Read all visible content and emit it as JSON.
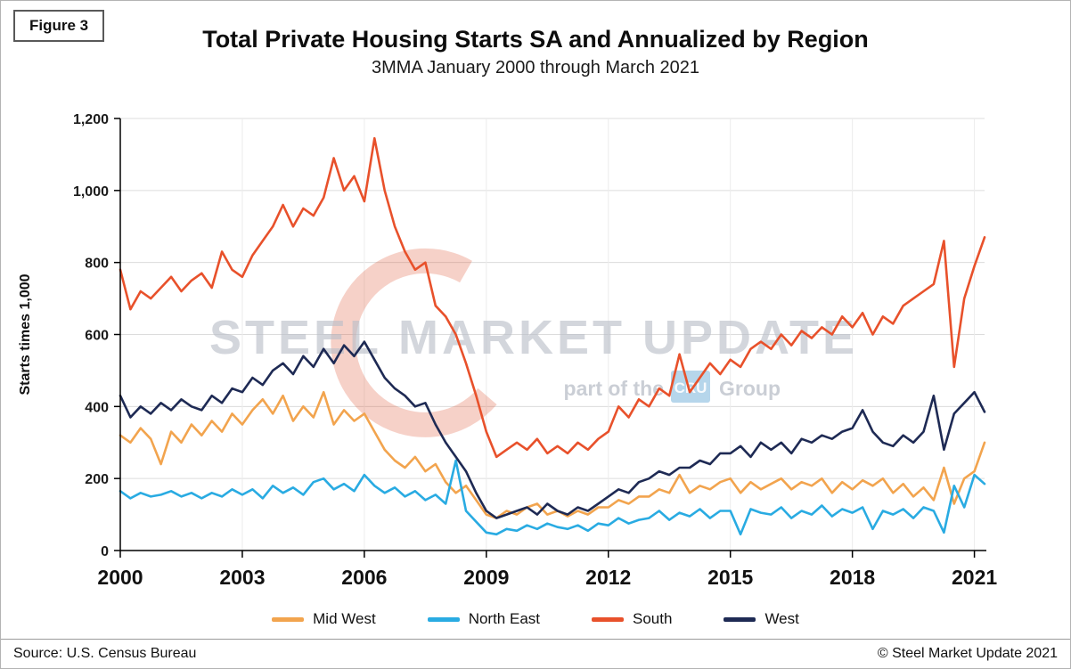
{
  "figure_label": "Figure 3",
  "title": "Total Private Housing Starts SA and Annualized by Region",
  "subtitle": "3MMA January 2000 through March 2021",
  "watermark": {
    "text": "STEEL MARKET UPDATE",
    "tagline_prefix": "part of the",
    "tagline_box": "CRU",
    "tagline_suffix": "Group",
    "text_color": "#b9bec8",
    "swoosh_color": "#dd4f2a",
    "box_color": "#8fc0e0"
  },
  "footer": {
    "source": "Source: U.S. Census Bureau",
    "copyright": "© Steel Market Update 2021"
  },
  "chart_data": {
    "type": "line",
    "title": "Total Private Housing Starts SA and Annualized by Region",
    "subtitle": "3MMA January 2000 through March 2021",
    "ylabel": "Starts times 1,000",
    "ylim": [
      0,
      1200
    ],
    "yticks": [
      0,
      200,
      400,
      600,
      800,
      1000,
      1200
    ],
    "ytick_labels": [
      "0",
      "200",
      "400",
      "600",
      "800",
      "1,000",
      "1,200"
    ],
    "xticks": [
      2000,
      2003,
      2006,
      2009,
      2012,
      2015,
      2018,
      2021
    ],
    "xlim": [
      2000,
      2021.25
    ],
    "x_start": 2000.0,
    "x_step": 0.25,
    "grid": true,
    "legend_position": "bottom",
    "series": [
      {
        "name": "Mid West",
        "color": "#F2A44E",
        "values": [
          320,
          300,
          340,
          310,
          240,
          330,
          300,
          350,
          320,
          360,
          330,
          380,
          350,
          390,
          420,
          380,
          430,
          360,
          400,
          370,
          440,
          350,
          390,
          360,
          380,
          330,
          280,
          250,
          230,
          260,
          220,
          240,
          190,
          160,
          180,
          140,
          100,
          90,
          110,
          100,
          120,
          130,
          100,
          110,
          95,
          110,
          100,
          120,
          120,
          140,
          130,
          150,
          150,
          170,
          160,
          210,
          160,
          180,
          170,
          190,
          200,
          160,
          190,
          170,
          185,
          200,
          170,
          190,
          180,
          200,
          160,
          190,
          170,
          195,
          180,
          200,
          160,
          185,
          150,
          175,
          140,
          230,
          130,
          200,
          220,
          300
        ]
      },
      {
        "name": "North East",
        "color": "#29ABE2",
        "values": [
          165,
          145,
          160,
          150,
          155,
          165,
          150,
          160,
          145,
          160,
          150,
          170,
          155,
          170,
          145,
          180,
          160,
          175,
          155,
          190,
          200,
          170,
          185,
          165,
          210,
          180,
          160,
          175,
          150,
          165,
          140,
          155,
          130,
          250,
          110,
          80,
          50,
          45,
          60,
          55,
          70,
          60,
          75,
          65,
          60,
          70,
          55,
          75,
          70,
          90,
          75,
          85,
          90,
          110,
          85,
          105,
          95,
          115,
          90,
          110,
          110,
          45,
          115,
          105,
          100,
          120,
          90,
          110,
          100,
          125,
          95,
          115,
          105,
          120,
          60,
          110,
          100,
          115,
          90,
          120,
          110,
          50,
          180,
          120,
          210,
          185
        ]
      },
      {
        "name": "South",
        "color": "#E8512B",
        "values": [
          780,
          670,
          720,
          700,
          730,
          760,
          720,
          750,
          770,
          730,
          830,
          780,
          760,
          820,
          860,
          900,
          960,
          900,
          950,
          930,
          980,
          1090,
          1000,
          1040,
          970,
          1145,
          1000,
          900,
          830,
          780,
          800,
          680,
          650,
          600,
          520,
          430,
          330,
          260,
          280,
          300,
          280,
          310,
          270,
          290,
          270,
          300,
          280,
          310,
          330,
          400,
          370,
          420,
          400,
          450,
          430,
          545,
          440,
          480,
          520,
          490,
          530,
          510,
          560,
          580,
          560,
          600,
          570,
          610,
          590,
          620,
          600,
          650,
          620,
          660,
          600,
          650,
          630,
          680,
          700,
          720,
          740,
          860,
          510,
          700,
          790,
          870
        ]
      },
      {
        "name": "West",
        "color": "#1E2A54",
        "values": [
          430,
          370,
          400,
          380,
          410,
          390,
          420,
          400,
          390,
          430,
          410,
          450,
          440,
          480,
          460,
          500,
          520,
          490,
          540,
          510,
          560,
          520,
          570,
          540,
          580,
          530,
          480,
          450,
          430,
          400,
          410,
          350,
          300,
          260,
          220,
          160,
          110,
          90,
          100,
          110,
          120,
          100,
          130,
          110,
          100,
          120,
          110,
          130,
          150,
          170,
          160,
          190,
          200,
          220,
          210,
          230,
          230,
          250,
          240,
          270,
          270,
          290,
          260,
          300,
          280,
          300,
          270,
          310,
          300,
          320,
          310,
          330,
          340,
          390,
          330,
          300,
          290,
          320,
          300,
          330,
          430,
          280,
          380,
          410,
          440,
          385
        ]
      }
    ]
  }
}
